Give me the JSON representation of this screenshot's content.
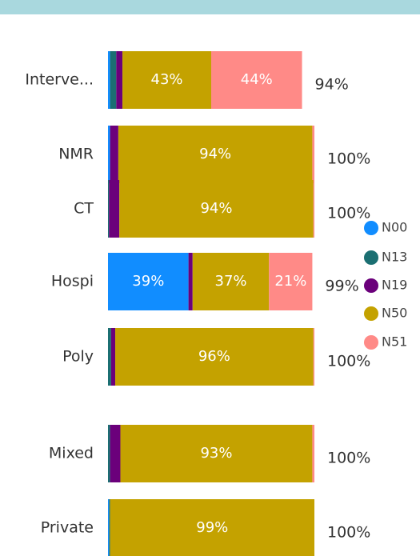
{
  "chart_data": {
    "type": "stacked-bar-horizontal",
    "categories": [
      "Interve...",
      "NMR",
      "CT",
      "Hospi",
      "Poly",
      "Mixed",
      "Private"
    ],
    "series": [
      {
        "name": "N00",
        "color": "#118DFF",
        "values": [
          1,
          1,
          0,
          39,
          0,
          0,
          0.5
        ],
        "value_labels": [
          null,
          null,
          null,
          "39%",
          null,
          null,
          null
        ]
      },
      {
        "name": "N13",
        "color": "#1B6F72",
        "values": [
          3,
          0,
          0.5,
          0,
          1.5,
          1,
          0.5
        ],
        "value_labels": [
          null,
          null,
          null,
          null,
          null,
          null,
          null
        ]
      },
      {
        "name": "N19",
        "color": "#6B007B",
        "values": [
          3,
          4,
          5,
          2,
          2,
          5,
          0
        ],
        "value_labels": [
          null,
          null,
          null,
          null,
          null,
          null,
          null
        ]
      },
      {
        "name": "N50",
        "color": "#C4A200",
        "values": [
          43,
          94,
          94,
          37,
          96,
          93,
          99
        ],
        "value_labels": [
          "43%",
          "94%",
          "94%",
          "37%",
          "96%",
          "93%",
          "99%"
        ]
      },
      {
        "name": "N51",
        "color": "#FF8A87",
        "values": [
          44,
          1,
          0.5,
          21,
          0.5,
          1,
          0
        ],
        "value_labels": [
          "44%",
          null,
          null,
          "21%",
          null,
          null,
          null
        ]
      }
    ],
    "totals": [
      94,
      100,
      100,
      99,
      100,
      100,
      100
    ],
    "total_labels": [
      "94%",
      "100%",
      "100%",
      "99%",
      "100%",
      "100%",
      "100%"
    ],
    "xlim": [
      0,
      100
    ],
    "legend": "right"
  }
}
